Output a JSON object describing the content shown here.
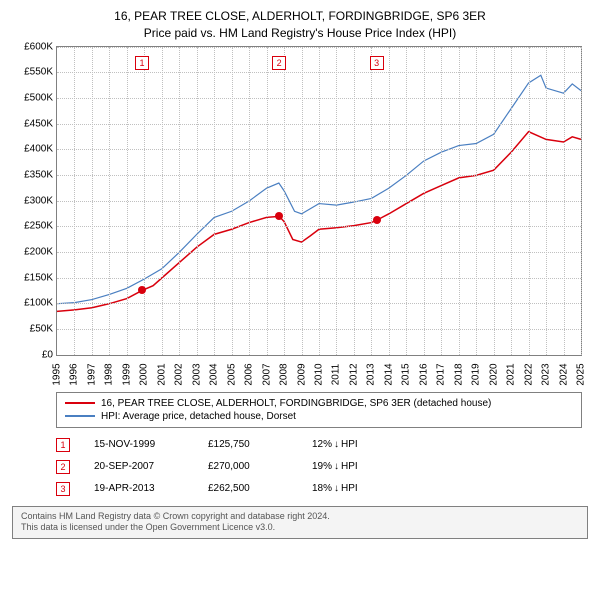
{
  "title_line1": "16, PEAR TREE CLOSE, ALDERHOLT, FORDINGBRIDGE, SP6 3ER",
  "title_line2": "Price paid vs. HM Land Registry's House Price Index (HPI)",
  "chart": {
    "type": "line",
    "background_color": "#ffffff",
    "grid_color": "#c0c0c0",
    "axis_color": "#808080",
    "x_years": [
      1995,
      1996,
      1997,
      1998,
      1999,
      2000,
      2001,
      2002,
      2003,
      2004,
      2005,
      2006,
      2007,
      2008,
      2009,
      2010,
      2011,
      2012,
      2013,
      2014,
      2015,
      2016,
      2017,
      2018,
      2019,
      2020,
      2021,
      2022,
      2023,
      2024,
      2025
    ],
    "x_min": 1995,
    "x_max": 2025,
    "y_ticks": [
      0,
      50,
      100,
      150,
      200,
      250,
      300,
      350,
      400,
      450,
      500,
      550,
      600
    ],
    "y_tick_labels": [
      "£0",
      "£50K",
      "£100K",
      "£150K",
      "£200K",
      "£250K",
      "£300K",
      "£350K",
      "£400K",
      "£450K",
      "£500K",
      "£550K",
      "£600K"
    ],
    "y_min": 0,
    "y_max": 600,
    "series": [
      {
        "name": "property",
        "label": "16, PEAR TREE CLOSE, ALDERHOLT, FORDINGBRIDGE, SP6 3ER (detached house)",
        "color": "#d9000d",
        "line_width": 1.5,
        "points": [
          [
            1995,
            85
          ],
          [
            1996,
            88
          ],
          [
            1997,
            92
          ],
          [
            1998,
            100
          ],
          [
            1999,
            110
          ],
          [
            1999.87,
            125.75
          ],
          [
            2000.5,
            135
          ],
          [
            2001,
            150
          ],
          [
            2002,
            180
          ],
          [
            2003,
            210
          ],
          [
            2004,
            235
          ],
          [
            2005,
            245
          ],
          [
            2006,
            258
          ],
          [
            2007,
            268
          ],
          [
            2007.72,
            270
          ],
          [
            2008,
            260
          ],
          [
            2008.5,
            225
          ],
          [
            2009,
            220
          ],
          [
            2009.5,
            232
          ],
          [
            2010,
            245
          ],
          [
            2011,
            248
          ],
          [
            2012,
            252
          ],
          [
            2013,
            258
          ],
          [
            2013.3,
            262.5
          ],
          [
            2014,
            275
          ],
          [
            2015,
            295
          ],
          [
            2016,
            315
          ],
          [
            2017,
            330
          ],
          [
            2018,
            345
          ],
          [
            2019,
            350
          ],
          [
            2020,
            360
          ],
          [
            2021,
            395
          ],
          [
            2022,
            435
          ],
          [
            2023,
            420
          ],
          [
            2024,
            415
          ],
          [
            2024.5,
            425
          ],
          [
            2025,
            420
          ]
        ]
      },
      {
        "name": "hpi",
        "label": "HPI: Average price, detached house, Dorset",
        "color": "#4a7fc1",
        "line_width": 1.2,
        "points": [
          [
            1995,
            100
          ],
          [
            1996,
            102
          ],
          [
            1997,
            108
          ],
          [
            1998,
            118
          ],
          [
            1999,
            130
          ],
          [
            2000,
            148
          ],
          [
            2001,
            168
          ],
          [
            2002,
            200
          ],
          [
            2003,
            235
          ],
          [
            2004,
            268
          ],
          [
            2005,
            280
          ],
          [
            2006,
            300
          ],
          [
            2007,
            325
          ],
          [
            2007.7,
            335
          ],
          [
            2008,
            320
          ],
          [
            2008.6,
            280
          ],
          [
            2009,
            275
          ],
          [
            2010,
            295
          ],
          [
            2011,
            292
          ],
          [
            2012,
            298
          ],
          [
            2013,
            305
          ],
          [
            2014,
            325
          ],
          [
            2015,
            350
          ],
          [
            2016,
            378
          ],
          [
            2017,
            395
          ],
          [
            2018,
            408
          ],
          [
            2019,
            412
          ],
          [
            2020,
            430
          ],
          [
            2021,
            480
          ],
          [
            2022,
            530
          ],
          [
            2022.7,
            545
          ],
          [
            2023,
            520
          ],
          [
            2024,
            510
          ],
          [
            2024.5,
            528
          ],
          [
            2025,
            515
          ]
        ]
      }
    ],
    "sale_markers": [
      {
        "num": "1",
        "year": 1999.87,
        "value": 125.75,
        "box_color": "#d9000d",
        "dot_color": "#d9000d"
      },
      {
        "num": "2",
        "year": 2007.72,
        "value": 270,
        "box_color": "#d9000d",
        "dot_color": "#d9000d"
      },
      {
        "num": "3",
        "year": 2013.3,
        "value": 262.5,
        "box_color": "#d9000d",
        "dot_color": "#d9000d"
      }
    ],
    "sale_marker_box_top_pct": 3
  },
  "sales_table": {
    "arrow_glyph": "↓",
    "diff_suffix": "HPI",
    "rows": [
      {
        "num": "1",
        "date": "15-NOV-1999",
        "price": "£125,750",
        "diff": "12%"
      },
      {
        "num": "2",
        "date": "20-SEP-2007",
        "price": "£270,000",
        "diff": "19%"
      },
      {
        "num": "3",
        "date": "19-APR-2013",
        "price": "£262,500",
        "diff": "18%"
      }
    ],
    "num_box_color": "#d9000d"
  },
  "footer_line1": "Contains HM Land Registry data © Crown copyright and database right 2024.",
  "footer_line2": "This data is licensed under the Open Government Licence v3.0.",
  "title_fontsize": 12,
  "tick_fontsize": 10,
  "legend_fontsize": 10
}
